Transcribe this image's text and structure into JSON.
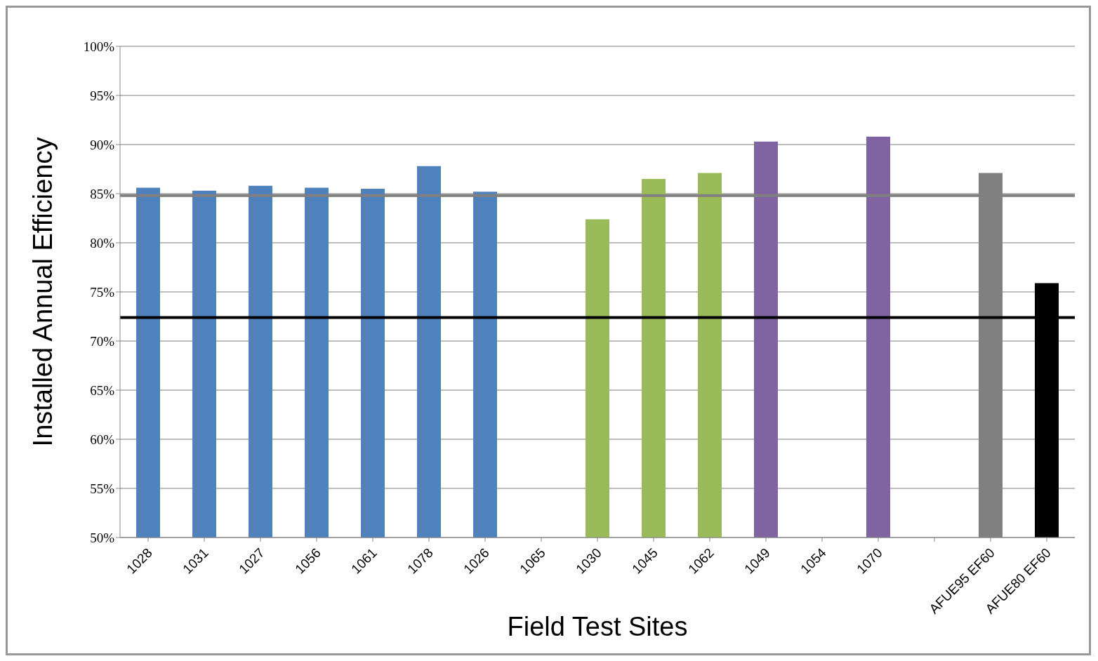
{
  "chart_data": {
    "type": "bar",
    "xlabel": "Field Test Sites",
    "ylabel": "Installed Annual Efficiency",
    "categories": [
      "1028",
      "1031",
      "1027",
      "1056",
      "1061",
      "1078",
      "1026",
      "1065",
      "1030",
      "1045",
      "1062",
      "1049",
      "1054",
      "1070",
      null,
      "AFUE95 EF60",
      "AFUE80 EF60"
    ],
    "values": [
      85.6,
      85.3,
      85.8,
      85.6,
      85.5,
      87.8,
      85.2,
      null,
      82.4,
      86.5,
      87.1,
      90.3,
      null,
      90.8,
      null,
      87.1,
      75.9
    ],
    "colors": [
      "#4f81bd",
      "#4f81bd",
      "#4f81bd",
      "#4f81bd",
      "#4f81bd",
      "#4f81bd",
      "#4f81bd",
      "#4f81bd",
      "#9bbb59",
      "#9bbb59",
      "#9bbb59",
      "#8064a2",
      "#8064a2",
      "#8064a2",
      "#808080",
      "#808080",
      "#000000"
    ],
    "ylim": [
      50,
      100
    ],
    "yticks": [
      {
        "value": 50,
        "label": "50%"
      },
      {
        "value": 55,
        "label": "55%"
      },
      {
        "value": 60,
        "label": "60%"
      },
      {
        "value": 65,
        "label": "65%"
      },
      {
        "value": 70,
        "label": "70%"
      },
      {
        "value": 75,
        "label": "75%"
      },
      {
        "value": 80,
        "label": "80%"
      },
      {
        "value": 85,
        "label": "85%"
      },
      {
        "value": 90,
        "label": "90%"
      },
      {
        "value": 95,
        "label": "95%"
      },
      {
        "value": 100,
        "label": "100%"
      }
    ],
    "grid": "y",
    "legend": false,
    "ref_lines": [
      {
        "axis": "y",
        "value": 84.8,
        "color": "#808080"
      },
      {
        "axis": "y",
        "value": 72.4,
        "color": "#000000"
      }
    ]
  }
}
